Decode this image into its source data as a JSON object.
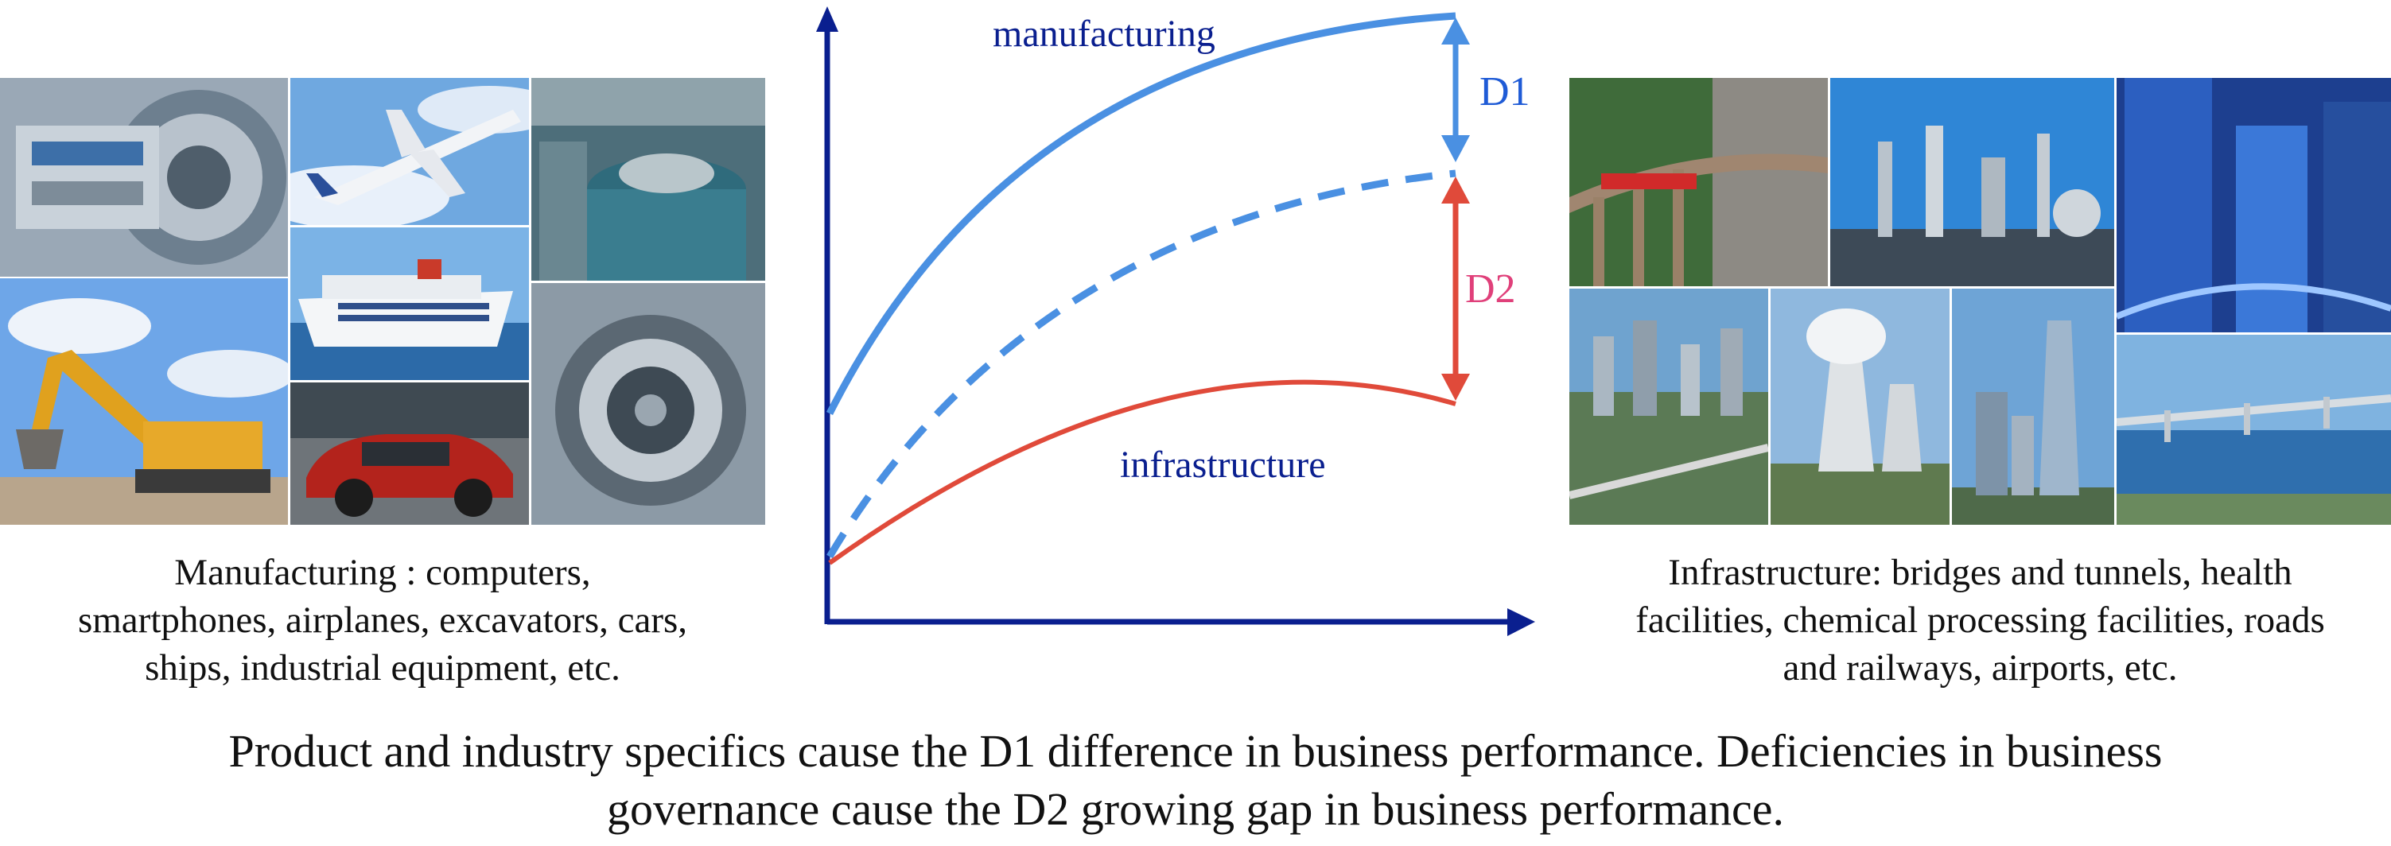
{
  "chart_data": {
    "type": "line",
    "title": "",
    "xlabel": "",
    "ylabel": "",
    "series": [
      {
        "name": "manufacturing",
        "color": "#4a90e2",
        "style": "solid"
      },
      {
        "name": "",
        "color": "#4a90e2",
        "style": "dashed"
      },
      {
        "name": "infrastructure",
        "color": "#e04a3a",
        "style": "solid"
      }
    ],
    "annotations": [
      {
        "label": "D1",
        "color": "#1f5bd6"
      },
      {
        "label": "D2",
        "color": "#e0407a"
      }
    ],
    "label_colors": {
      "series_label": "#0a1f8f",
      "axis": "#0a1f8f"
    }
  },
  "left": {
    "caption_lines": [
      "Manufacturing : computers,",
      "smartphones, airplanes, excavators, cars,",
      "ships, industrial equipment, etc."
    ],
    "tiles": [
      "turbine-engine-photo",
      "airplane-photo",
      "hydro-turbine-photo",
      "excavator-photo",
      "cruise-ship-photo",
      "red-car-photo",
      "generator-photo"
    ]
  },
  "right": {
    "caption_lines": [
      "Infrastructure:  bridges and tunnels, health",
      "facilities, chemical processing facilities, roads",
      "and railways, airports, etc."
    ],
    "tiles": [
      "railway-viaduct-photo",
      "chemical-plant-photo",
      "glass-skyscrapers-photo",
      "city-aerial-photo",
      "power-plant-photo",
      "tower-skyline-photo",
      "bridge-river-photo"
    ]
  },
  "bottom_caption_lines": [
    "Product and industry specifics cause the D1 difference in business performance. Deficiencies in business",
    "governance cause the D2 growing gap in business performance."
  ]
}
